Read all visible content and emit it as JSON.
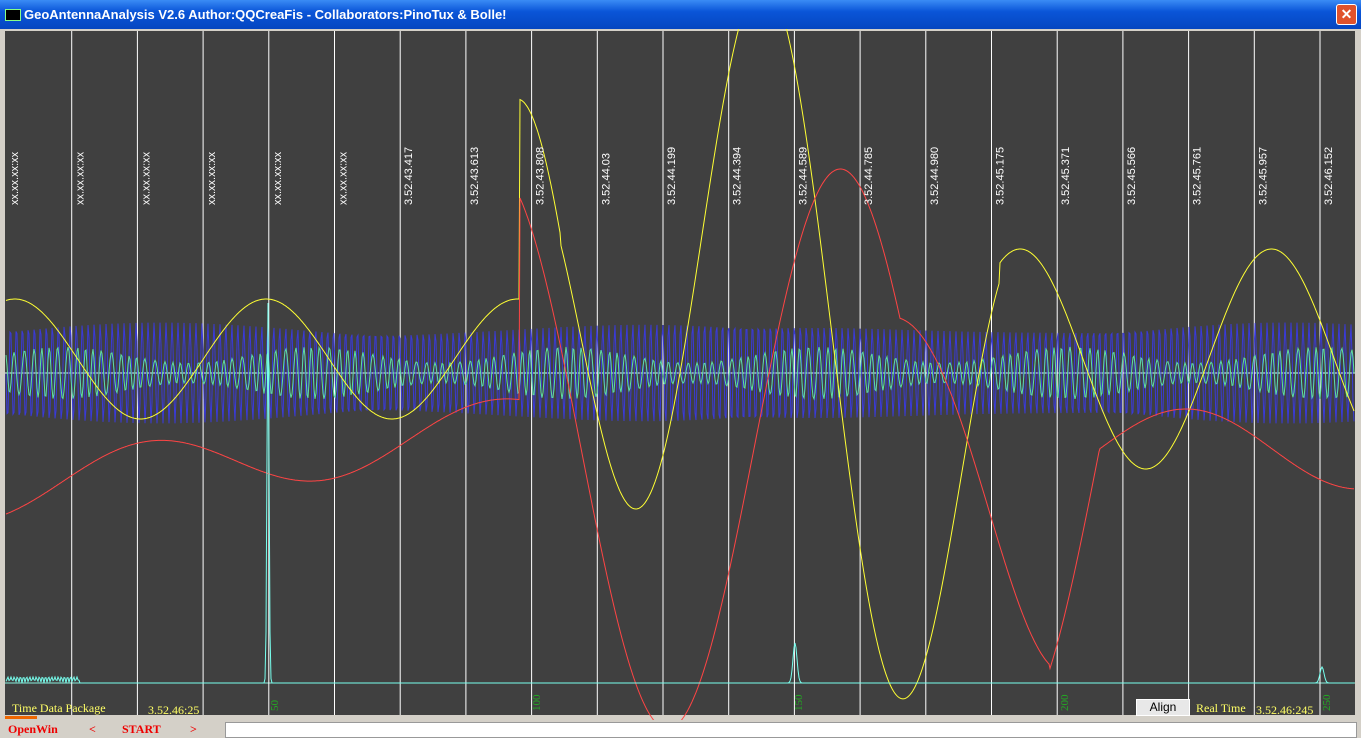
{
  "window": {
    "title": "GeoAntennaAnalysis V2.6 Author:QQCreaFis - Collaborators:PinoTux & Bolle!"
  },
  "plot": {
    "time_labels": [
      "xx.xx.xx:xx",
      "xx.xx.xx:xx",
      "xx.xx.xx:xx",
      "xx.xx.xx:xx",
      "xx.xx.xx:xx",
      "xx.xx.xx:xx",
      "3.52.43.417",
      "3.52.43.613",
      "3.52.43.808",
      "3.52.44.03",
      "3.52.44.199",
      "3.52.44.394",
      "3.52.44.589",
      "3.52.44.785",
      "3.52.44.980",
      "3.52.45.175",
      "3.52.45.371",
      "3.52.45.566",
      "3.52.45.761",
      "3.52.45.957",
      "3.52.46.152"
    ],
    "sample_labels": [
      "50",
      "100",
      "150",
      "200",
      "250"
    ]
  },
  "status": {
    "left_label": "Time Data Package",
    "left_time": "3.52.46:25",
    "align_button": "Align",
    "right_label": "Real Time",
    "right_time": "3.52.46:245"
  },
  "toolbar": {
    "open": "OpenWin",
    "prev": "<",
    "start": "START",
    "next": ">"
  }
}
